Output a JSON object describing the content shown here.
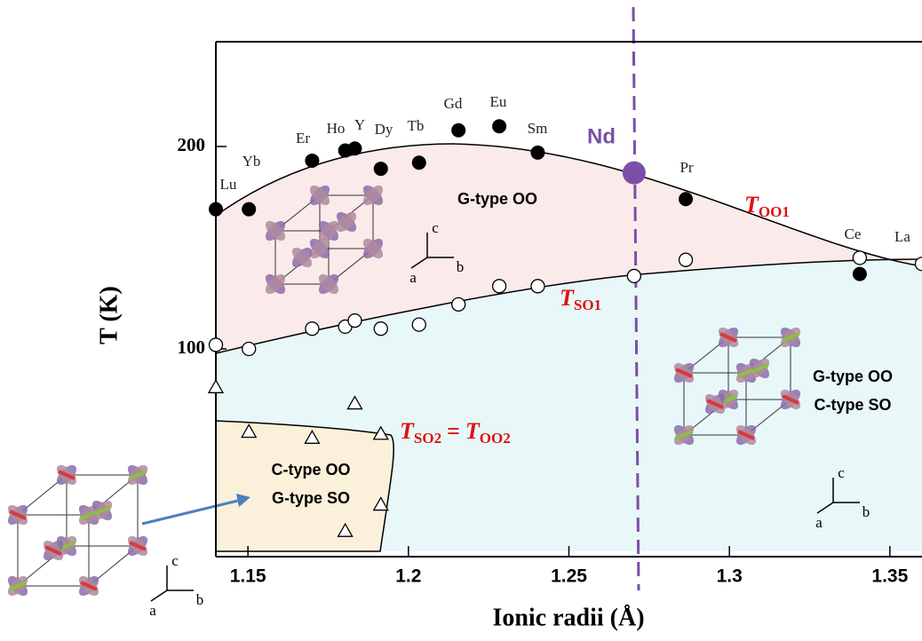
{
  "chart_data": {
    "type": "scatter",
    "xlabel": "Ionic radii  (Å)",
    "ylabel": "T (K)",
    "xlim": [
      1.14,
      1.36
    ],
    "xticks": [
      1.15,
      1.2,
      1.25,
      1.3,
      1.35
    ],
    "ylim": [
      0,
      250
    ],
    "yticks": [
      100,
      200
    ],
    "series": [
      {
        "marker": "filled-circle",
        "color": "#000000",
        "x": [
          1.14,
          1.1503,
          1.17,
          1.1803,
          1.1833,
          1.1914,
          1.2033,
          1.2156,
          1.2283,
          1.2403,
          1.2864,
          1.3406
        ],
        "values": [
          169,
          169,
          193,
          198,
          199,
          189,
          192,
          208,
          210,
          197,
          174,
          137
        ]
      },
      {
        "marker": "open-circle",
        "color": "#000000",
        "x": [
          1.14,
          1.1503,
          1.17,
          1.1803,
          1.1833,
          1.1914,
          1.2033,
          1.2156,
          1.2283,
          1.2403,
          1.2703,
          1.2864,
          1.3406,
          1.36
        ],
        "values": [
          102,
          100,
          110,
          111,
          114,
          110,
          112,
          122,
          131,
          131,
          136,
          144,
          145,
          142
        ]
      },
      {
        "marker": "open-triangle",
        "color": "#000000",
        "x": [
          1.14,
          1.1503,
          1.17,
          1.1833,
          1.1914,
          1.1914,
          1.1803
        ],
        "values": [
          81,
          59,
          56,
          73,
          58,
          23,
          10
        ]
      },
      {
        "marker": "big-circle",
        "color": "#7b4fa8",
        "x": [
          1.2703
        ],
        "values": [
          187
        ]
      }
    ],
    "highlight_label": "Nd",
    "element_labels": [
      "Lu",
      "Yb",
      "Er",
      "Ho",
      "Y",
      "Dy",
      "Tb",
      "Gd",
      "Eu",
      "Sm",
      "Pr",
      "Ce",
      "La"
    ],
    "transition_labels": [
      {
        "symbol": "T",
        "sub": "OO1"
      },
      {
        "symbol": "T",
        "sub": "SO1"
      },
      {
        "symbol": "T",
        "sub": "SO2",
        "eq": "=",
        "symbol2": "T",
        "sub2": "OO2"
      }
    ],
    "phase_labels": [
      [
        "G-type OO"
      ],
      [
        "C-type OO",
        "G-type SO"
      ],
      [
        "G-type OO",
        "C-type SO"
      ]
    ],
    "axis_letters": [
      "a",
      "b",
      "c"
    ]
  }
}
